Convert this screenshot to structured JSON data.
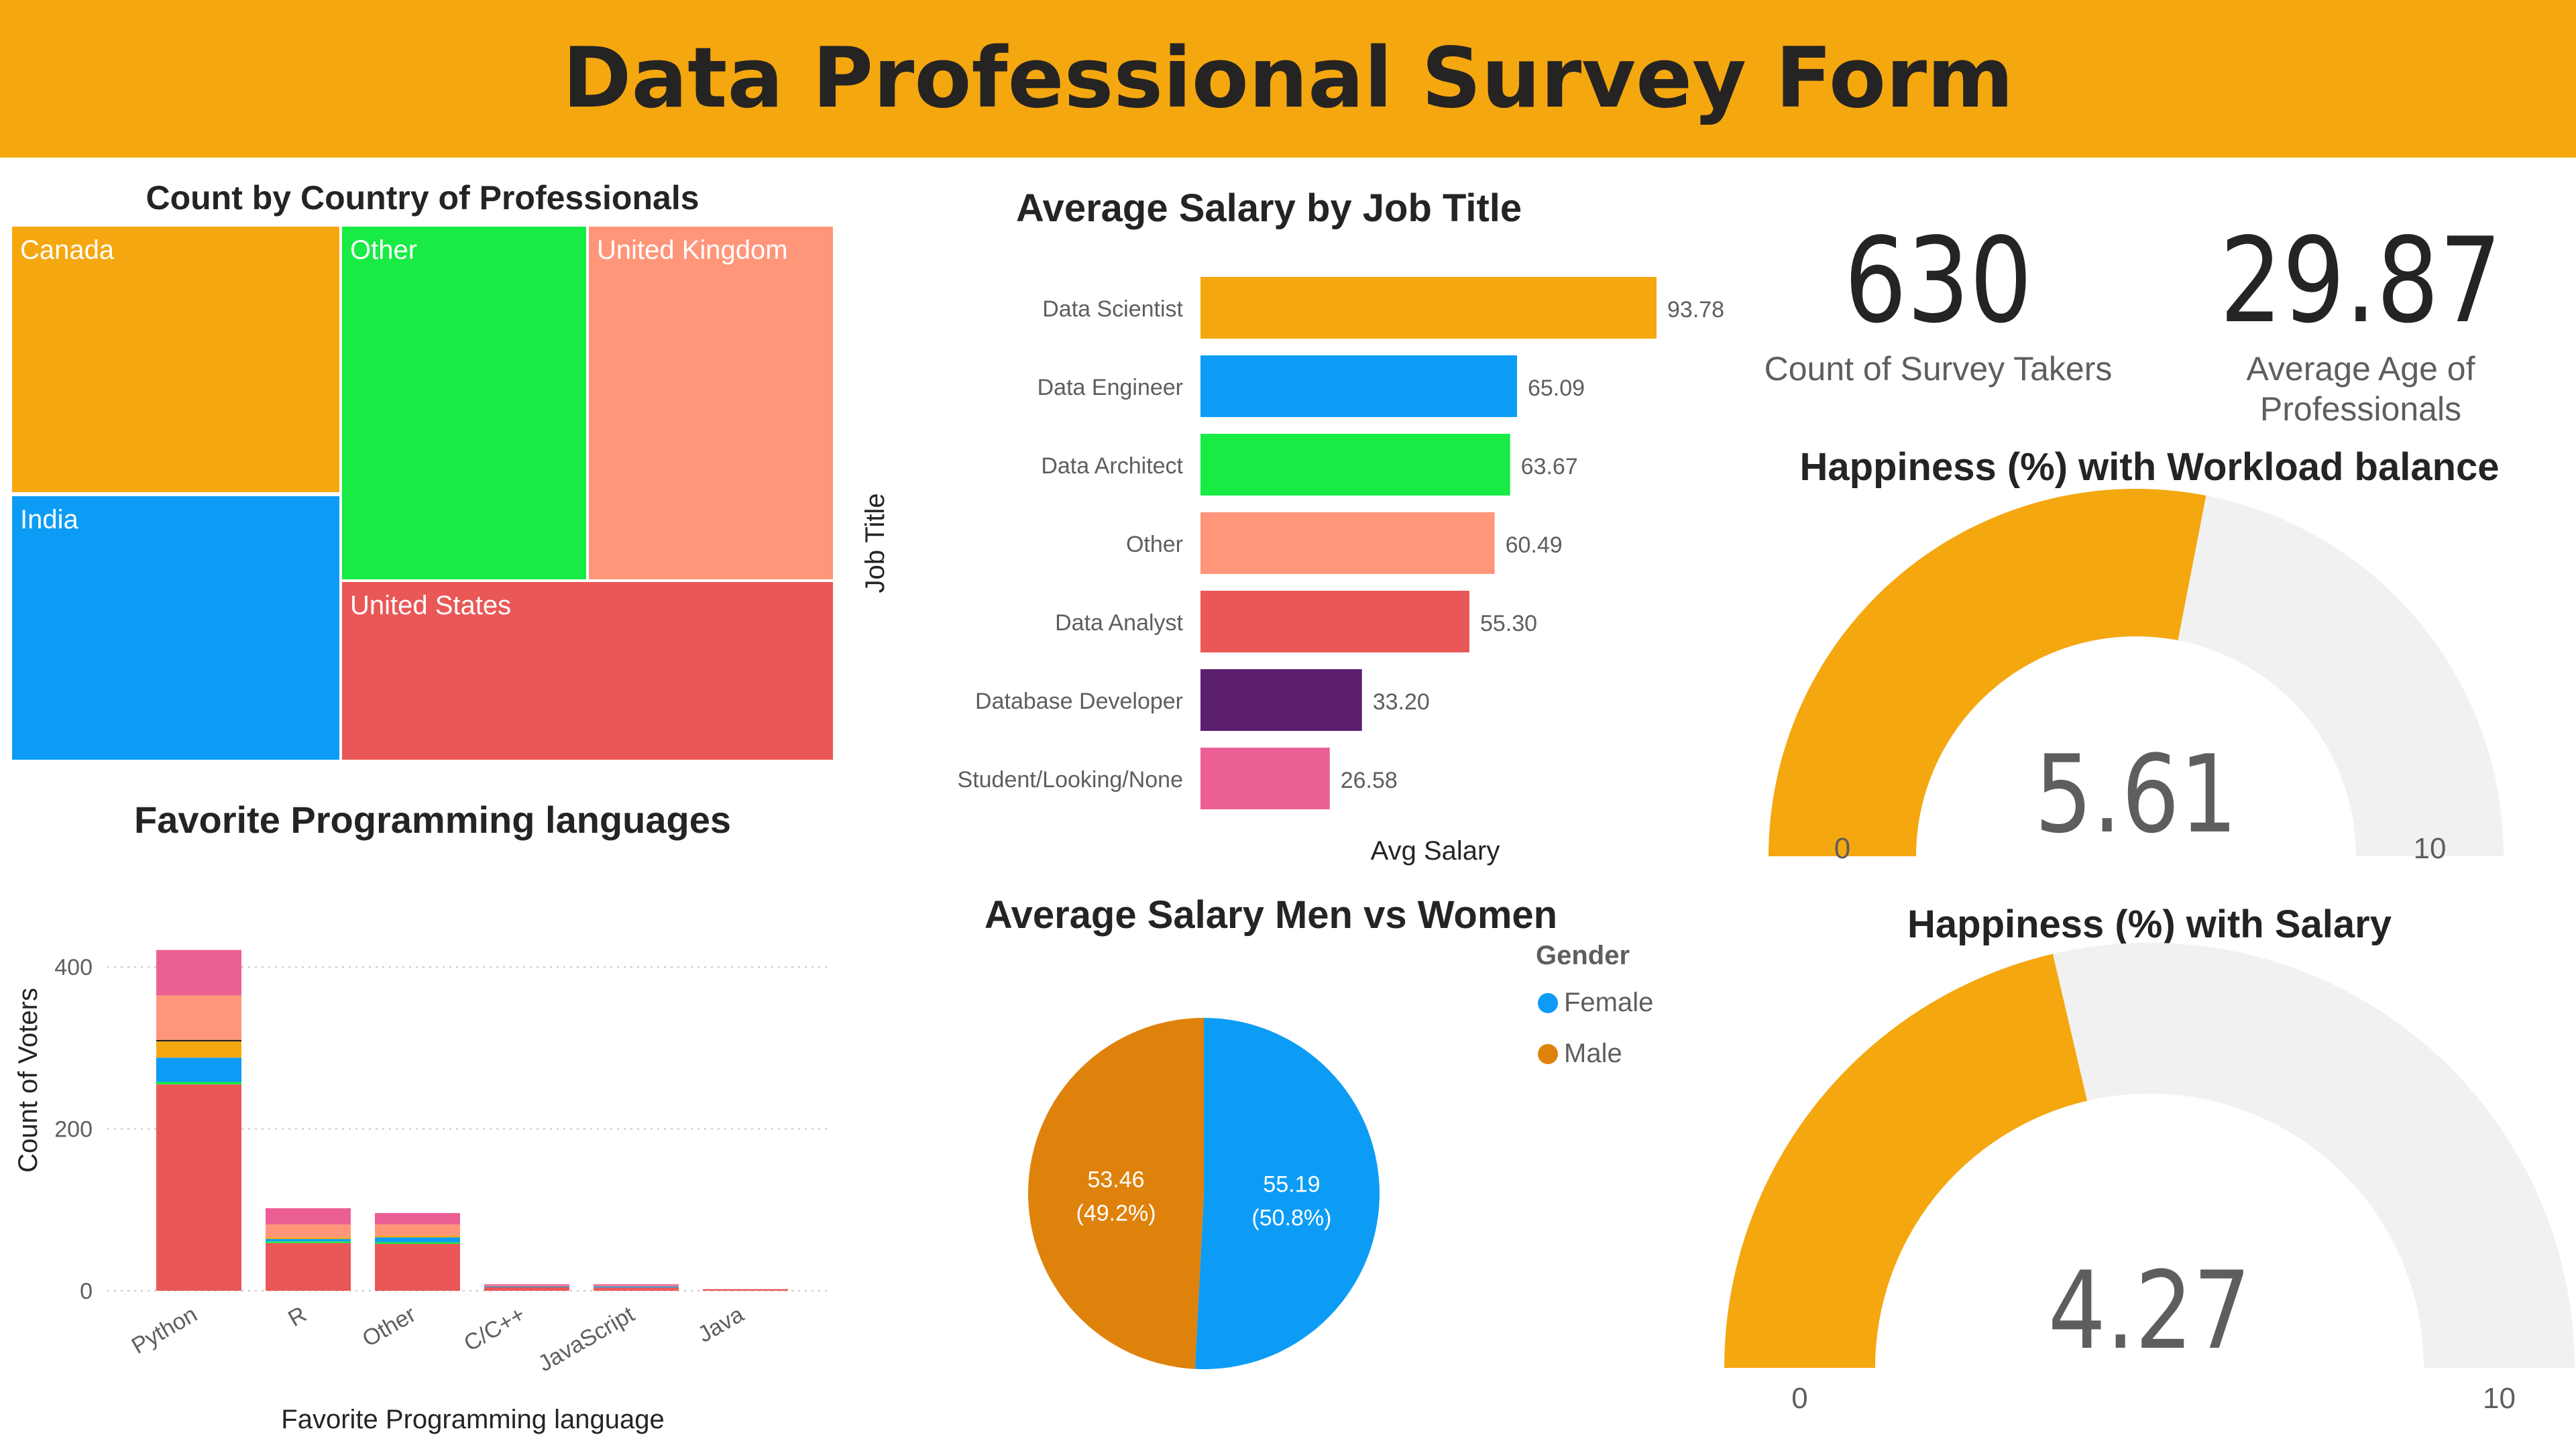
{
  "header": {
    "title": "Data Professional Survey Form"
  },
  "cards": [
    {
      "value": "630",
      "label": "Count of Survey Takers"
    },
    {
      "value": "29.87",
      "label": "Average Age of Professionals"
    }
  ],
  "chart_data": [
    {
      "id": "country",
      "type": "treemap",
      "title": "Count by Country of Professionals",
      "categories": [
        "Canada",
        "India",
        "Other",
        "United Kingdom",
        "United States"
      ],
      "colors": [
        "#f5a70f",
        "#0d9cf5",
        "#17eb44",
        "#ff967a",
        "#ea5757"
      ]
    },
    {
      "id": "salary_by_title",
      "type": "bar",
      "orientation": "horizontal",
      "title": "Average Salary by Job Title",
      "xlabel": "Avg Salary",
      "ylabel": "Job Title",
      "categories": [
        "Data Scientist",
        "Data Engineer",
        "Data Architect",
        "Other",
        "Data Analyst",
        "Database Developer",
        "Student/Looking/None"
      ],
      "values": [
        93.78,
        65.09,
        63.67,
        60.49,
        55.3,
        33.2,
        26.58
      ],
      "value_labels": [
        "93.78",
        "65.09",
        "63.67",
        "60.49",
        "55.30",
        "33.20",
        "26.58"
      ],
      "colors": [
        "#f5a70f",
        "#0d9cf5",
        "#17eb44",
        "#ff967a",
        "#ea5757",
        "#5b1f6e",
        "#ec5f95"
      ]
    },
    {
      "id": "languages",
      "type": "bar",
      "stacked": true,
      "title": "Favorite Programming languages",
      "xlabel": "Favorite Programming language",
      "ylabel": "Count of Voters",
      "ylim": [
        0,
        420
      ],
      "yticks": [
        0,
        200,
        400
      ],
      "grid": true,
      "categories": [
        "Python",
        "R",
        "Other",
        "C/C++",
        "JavaScript",
        "Java"
      ],
      "series": [
        {
          "values": [
            255,
            59,
            58,
            5,
            4,
            2
          ],
          "color": "#ea5757"
        },
        {
          "values": [
            3,
            2,
            2,
            0,
            0,
            0
          ],
          "color": "#17eb44"
        },
        {
          "values": [
            30,
            3,
            6,
            1,
            2,
            0
          ],
          "color": "#0d9cf5"
        },
        {
          "values": [
            20,
            2,
            2,
            0,
            0,
            0
          ],
          "color": "#f5a70f"
        },
        {
          "values": [
            2,
            0,
            0,
            0,
            0,
            0
          ],
          "color": "#252423"
        },
        {
          "values": [
            55,
            16,
            14,
            1,
            1,
            0
          ],
          "color": "#ff967a"
        },
        {
          "values": [
            56,
            20,
            14,
            1,
            1,
            0
          ],
          "color": "#ec5f95"
        }
      ]
    },
    {
      "id": "salary_gender",
      "type": "pie",
      "title": "Average Salary Men vs Women",
      "legend_title": "Gender",
      "legend_position": "top-right",
      "slices": [
        {
          "name": "Female",
          "value": 55.19,
          "label": "55.19",
          "pct_label": "(50.8%)",
          "color": "#0d9cf5"
        },
        {
          "name": "Male",
          "value": 53.46,
          "label": "53.46",
          "pct_label": "(49.2%)",
          "color": "#df820c"
        }
      ]
    },
    {
      "id": "happy_workload",
      "type": "gauge",
      "title": "Happiness (%) with Workload balance",
      "min": 0,
      "max": 10,
      "value": 5.61,
      "value_label": "5.61",
      "min_label": "0",
      "max_label": "10",
      "fill_color": "#f5a70f",
      "track_color": "#f1f1f1"
    },
    {
      "id": "happy_salary",
      "type": "gauge",
      "title": "Happiness (%) with Salary",
      "min": 0,
      "max": 10,
      "value": 4.27,
      "value_label": "4.27",
      "min_label": "0",
      "max_label": "10",
      "fill_color": "#f5a70f",
      "track_color": "#f1f1f1"
    }
  ]
}
